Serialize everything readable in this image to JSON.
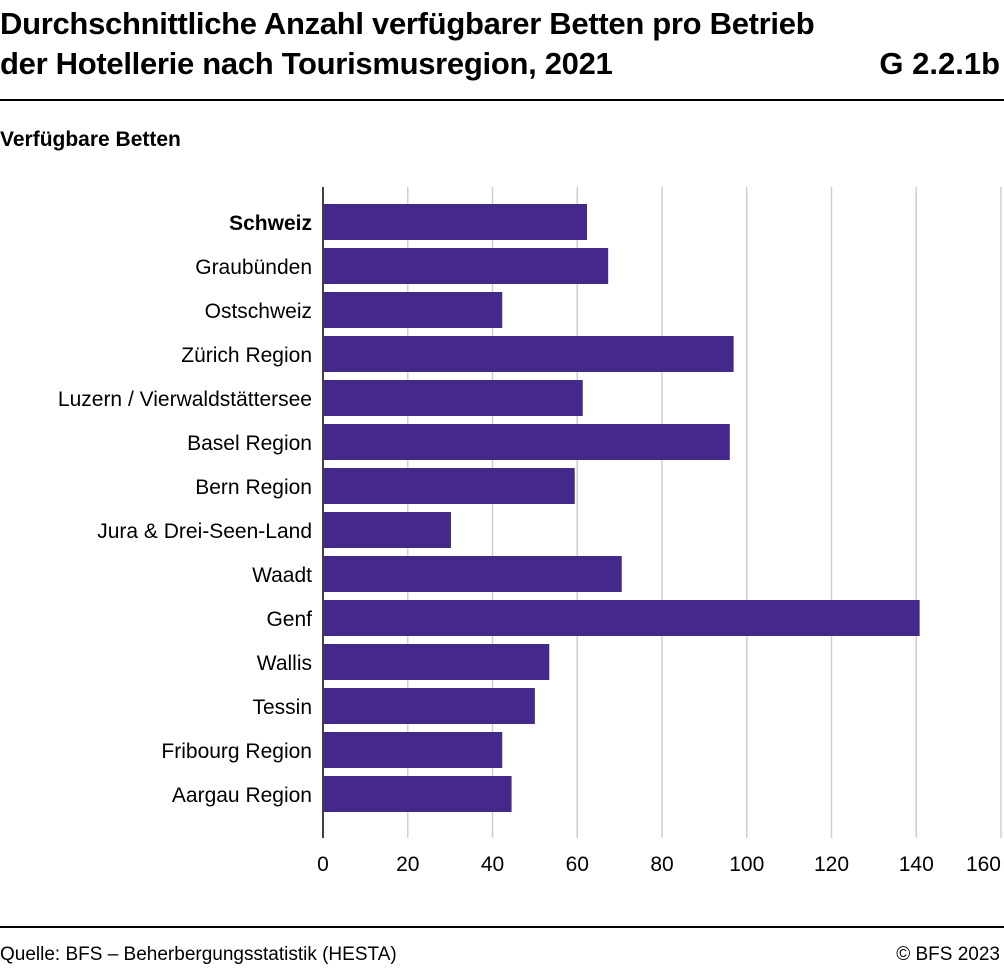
{
  "header": {
    "title_line1": "Durchschnittliche Anzahl verfügbarer Betten pro Betrieb",
    "title_line2": "der Hotellerie nach Tourismusregion, 2021",
    "code": "G 2.2.1b"
  },
  "footer": {
    "source": "Quelle: BFS – Beherbergungsstatistik (HESTA)",
    "copyright": "© BFS 2023"
  },
  "chart_data": {
    "type": "bar",
    "orientation": "horizontal",
    "ylabel": "Verfügbare Betten",
    "categories": [
      "Schweiz",
      "Graubünden",
      "Ostschweiz",
      "Zürich Region",
      "Luzern / Vierwaldstättersee",
      "Basel Region",
      "Bern Region",
      "Jura & Drei-Seen-Land",
      "Waadt",
      "Genf",
      "Wallis",
      "Tessin",
      "Fribourg Region",
      "Aargau Region"
    ],
    "values": [
      62.3,
      67.3,
      42.3,
      96.9,
      61.3,
      96.0,
      59.4,
      30.2,
      70.5,
      140.8,
      53.4,
      50.0,
      42.3,
      44.5
    ],
    "bold_categories": [
      "Schweiz"
    ],
    "xlim": [
      0,
      160
    ],
    "xticks": [
      0,
      20,
      40,
      60,
      80,
      100,
      120,
      140,
      160
    ],
    "grid": true,
    "bar_color": "#44288c"
  }
}
